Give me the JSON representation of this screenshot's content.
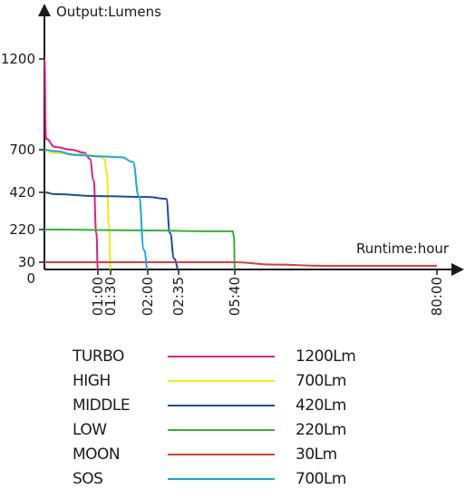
{
  "chart_data": {
    "type": "line",
    "ylabel": "Output:Lumens",
    "xlabel": "Runtime:hour",
    "y_ticks": [
      {
        "value": 1200,
        "label": "1200"
      },
      {
        "value": 700,
        "label": "700"
      },
      {
        "value": 420,
        "label": "420"
      },
      {
        "value": 220,
        "label": "220"
      },
      {
        "value": 30,
        "label": "30"
      },
      {
        "value": 0,
        "label": "0"
      }
    ],
    "x_ticks": [
      {
        "value": 1.0,
        "label": "01:00"
      },
      {
        "value": 1.5,
        "label": "01:30"
      },
      {
        "value": 2.0,
        "label": "02:00"
      },
      {
        "value": 2.583,
        "label": "02:35"
      },
      {
        "value": 5.667,
        "label": "05:40"
      },
      {
        "value": 80.0,
        "label": "80:00"
      }
    ],
    "series": [
      {
        "name": "TURBO",
        "output": "1200Lm",
        "color": "#d8228c",
        "points": [
          [
            0.0,
            1200
          ],
          [
            0.03,
            760
          ],
          [
            0.2,
            715
          ],
          [
            0.5,
            700
          ],
          [
            0.75,
            680
          ],
          [
            0.85,
            640
          ],
          [
            0.92,
            500
          ],
          [
            0.97,
            200
          ],
          [
            1.0,
            0
          ]
        ]
      },
      {
        "name": "HIGH",
        "output": "700Lm",
        "color": "#f2ea1a",
        "points": [
          [
            0.0,
            700
          ],
          [
            0.15,
            680
          ],
          [
            0.6,
            670
          ],
          [
            1.05,
            660
          ],
          [
            1.25,
            640
          ],
          [
            1.35,
            550
          ],
          [
            1.43,
            250
          ],
          [
            1.5,
            0
          ]
        ]
      },
      {
        "name": "MIDDLE",
        "output": "420Lm",
        "color": "#1e4b9a",
        "points": [
          [
            0.0,
            420
          ],
          [
            0.2,
            410
          ],
          [
            1.0,
            400
          ],
          [
            2.0,
            395
          ],
          [
            2.35,
            385
          ],
          [
            2.42,
            200
          ],
          [
            2.5,
            50
          ],
          [
            2.583,
            0
          ]
        ]
      },
      {
        "name": "LOW",
        "output": "220Lm",
        "color": "#36b03c",
        "points": [
          [
            0.0,
            220
          ],
          [
            2.0,
            215
          ],
          [
            4.0,
            210
          ],
          [
            5.55,
            210
          ],
          [
            5.62,
            180
          ],
          [
            5.667,
            0
          ]
        ]
      },
      {
        "name": "MOON",
        "output": "30Lm",
        "color": "#e03c3c",
        "points": [
          [
            0.0,
            30
          ],
          [
            5.667,
            30
          ],
          [
            20.0,
            20
          ],
          [
            40.0,
            15
          ],
          [
            80.0,
            15
          ]
        ]
      },
      {
        "name": "SOS",
        "output": "700Lm",
        "color": "#1aa7e0",
        "points": [
          [
            0.0,
            700
          ],
          [
            0.2,
            690
          ],
          [
            0.6,
            665
          ],
          [
            1.2,
            655
          ],
          [
            1.65,
            650
          ],
          [
            1.8,
            620
          ],
          [
            1.88,
            400
          ],
          [
            1.95,
            100
          ],
          [
            2.0,
            0
          ]
        ]
      }
    ]
  }
}
